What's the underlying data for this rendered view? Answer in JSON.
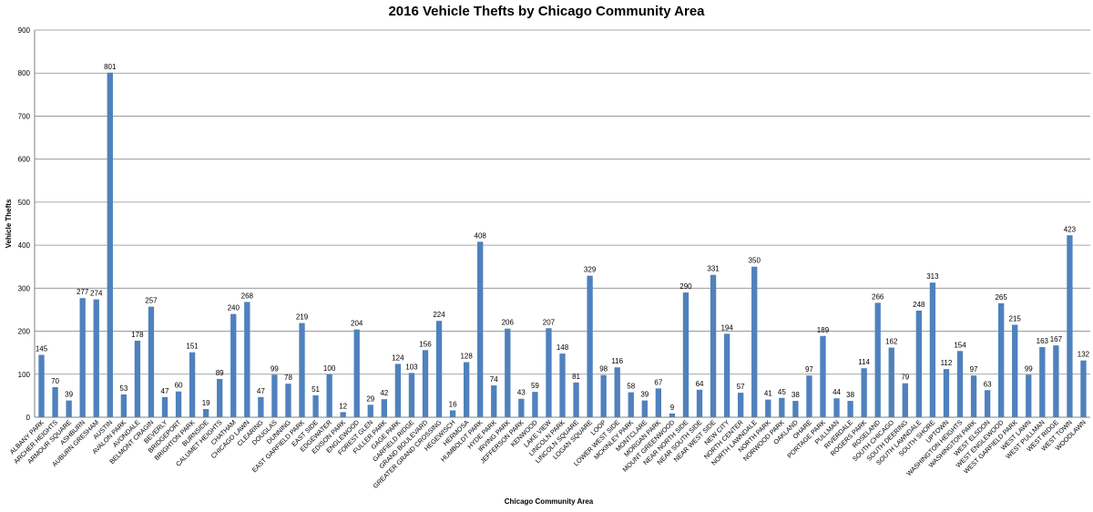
{
  "chart_data": {
    "type": "bar",
    "title": "2016 Vehicle Thefts by Chicago Community Area",
    "xlabel": "Chicago Community Area",
    "ylabel": "Vehicle Thefts",
    "ylim": [
      0,
      900
    ],
    "yticks": [
      0,
      100,
      200,
      300,
      400,
      500,
      600,
      700,
      800,
      900
    ],
    "grid": true,
    "bar_color": "#4f81bd",
    "categories": [
      "ALBANY PARK",
      "ARCHER HEIGHTS",
      "ARMOUR SQUARE",
      "ASHBURN",
      "AUBURN GRESHAM",
      "AUSTIN",
      "AVALON PARK",
      "AVONDALE",
      "BELMONT CRAGIN",
      "BEVERLY",
      "BRIDGEPORT",
      "BRIGHTON PARK",
      "BURNSIDE",
      "CALUMET HEIGHTS",
      "CHATHAM",
      "CHICAGO LAWN",
      "CLEARING",
      "DOUGLAS",
      "DUNNING",
      "EAST GARFIELD PARK",
      "EAST SIDE",
      "EDGEWATER",
      "EDISON PARK",
      "ENGLEWOOD",
      "FOREST GLEN",
      "FULLER PARK",
      "GAGE PARK",
      "GARFIELD RIDGE",
      "GRAND BOULEVARD",
      "GREATER GRAND CROSSING",
      "HEGEWISCH",
      "HERMOSA",
      "HUMBOLDT PARK",
      "HYDE PARK",
      "IRVING PARK",
      "JEFFERSON PARK",
      "KENWOOD",
      "LAKE VIEW",
      "LINCOLN PARK",
      "LINCOLN SQUARE",
      "LOGAN SQUARE",
      "LOOP",
      "LOWER WEST SIDE",
      "MCKINLEY PARK",
      "MONTCLARE",
      "MORGAN PARK",
      "MOUNT GREENWOOD",
      "NEAR NORTH SIDE",
      "NEAR SOUTH SIDE",
      "NEAR WEST SIDE",
      "NEW CITY",
      "NORTH CENTER",
      "NORTH LAWNDALE",
      "NORTH PARK",
      "NORWOOD PARK",
      "OAKLAND",
      "OHARE",
      "PORTAGE PARK",
      "PULLMAN",
      "RIVERDALE",
      "ROGERS PARK",
      "ROSELAND",
      "SOUTH CHICAGO",
      "SOUTH DEERING",
      "SOUTH LAWNDALE",
      "SOUTH SHORE",
      "UPTOWN",
      "WASHINGTON HEIGHTS",
      "WASHINGTON PARK",
      "WEST ELSDON",
      "WEST ENGLEWOOD",
      "WEST GARFIELD PARK",
      "WEST LAWN",
      "WEST PULLMAN",
      "WEST RIDGE",
      "WEST TOWN",
      "WOODLAWN"
    ],
    "values": [
      145,
      70,
      39,
      277,
      274,
      801,
      53,
      178,
      257,
      47,
      60,
      151,
      19,
      89,
      240,
      268,
      47,
      99,
      78,
      219,
      51,
      100,
      12,
      204,
      29,
      42,
      124,
      103,
      156,
      224,
      16,
      128,
      408,
      74,
      206,
      43,
      59,
      207,
      148,
      81,
      329,
      98,
      116,
      58,
      39,
      67,
      9,
      290,
      64,
      331,
      194,
      57,
      350,
      41,
      45,
      38,
      97,
      189,
      44,
      38,
      114,
      266,
      162,
      79,
      248,
      313,
      112,
      154,
      97,
      63,
      265,
      215,
      99,
      163,
      167,
      423,
      132
    ]
  }
}
